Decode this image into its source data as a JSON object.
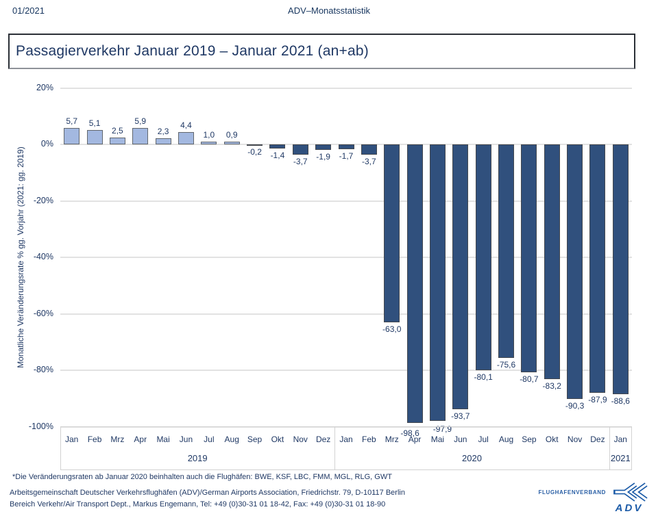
{
  "page": {
    "issue": "01/2021",
    "doc_title": "ADV–Monatsstatistik"
  },
  "title": "Passagierverkehr Januar 2019 – Januar 2021 (an+ab)",
  "chart_data": {
    "type": "bar",
    "title": "Passagierverkehr Januar 2019 – Januar 2021 (an+ab)",
    "ylabel": "Monatliche Veränderungsrate % gg. Vorjahr (2021: gg. 2019)",
    "ylim": [
      -100,
      20
    ],
    "yticks": [
      20,
      0,
      -20,
      -40,
      -60,
      -80,
      -100
    ],
    "ytick_labels": [
      "20%",
      "0%",
      "-20%",
      "-40%",
      "-60%",
      "-80%",
      "-100%"
    ],
    "grid": true,
    "legend": "none",
    "categories": [
      "Jan",
      "Feb",
      "Mrz",
      "Apr",
      "Mai",
      "Jun",
      "Jul",
      "Aug",
      "Sep",
      "Okt",
      "Nov",
      "Dez",
      "Jan",
      "Feb",
      "Mrz",
      "Apr",
      "Mai",
      "Jun",
      "Jul",
      "Aug",
      "Sep",
      "Okt",
      "Nov",
      "Dez",
      "Jan"
    ],
    "values": [
      5.7,
      5.1,
      2.5,
      5.9,
      2.3,
      4.4,
      1.0,
      0.9,
      -0.2,
      -1.4,
      -3.7,
      -1.9,
      -1.7,
      -3.7,
      -63.0,
      -98.6,
      -97.9,
      -93.7,
      -80.1,
      -75.6,
      -80.7,
      -83.2,
      -90.3,
      -87.9,
      -88.6
    ],
    "value_labels": [
      "5,7",
      "5,1",
      "2,5",
      "5,9",
      "2,3",
      "4,4",
      "1,0",
      "0,9",
      "-0,2",
      "-1,4",
      "-3,7",
      "-1,9",
      "-1,7",
      "-3,7",
      "-63,0",
      "-98,6",
      "-97,9",
      "-93,7",
      "-80,1",
      "-75,6",
      "-80,7",
      "-83,2",
      "-90,3",
      "-87,9",
      "-88,6"
    ],
    "year_groups": [
      {
        "label": "2019",
        "start": 0,
        "count": 12
      },
      {
        "label": "2020",
        "start": 12,
        "count": 12
      },
      {
        "label": "2021",
        "start": 24,
        "count": 1
      }
    ],
    "colors": {
      "positive_fill": "#a3b8e0",
      "negative_fill": "#30507d",
      "bar_border": "#61666c",
      "gridline": "#e2e2e2",
      "text": "#1f3864"
    },
    "label_offsets": {
      "15": [
        -7,
        5
      ],
      "16": [
        7,
        2
      ]
    }
  },
  "footnote": "*Die Veränderungsraten ab Januar 2020 beinhalten auch die Flughäfen: BWE, KSF, LBC, FMM, MGL, RLG, GWT",
  "footer": {
    "line1": "Arbeitsgemeinschaft Deutscher Verkehrsflughäfen (ADV)/German Airports Association, Friedrichstr. 79, D-10117 Berlin",
    "line2": "Bereich Verkehr/Air Transport Dept., Markus Engemann, Tel: +49 (0)30-31 01 18-42, Fax: +49 (0)30-31 01 18-90"
  },
  "logo": {
    "org": "FLUGHAFENVERBAND",
    "abbr": "ADV",
    "color": "#1d5ca8"
  }
}
